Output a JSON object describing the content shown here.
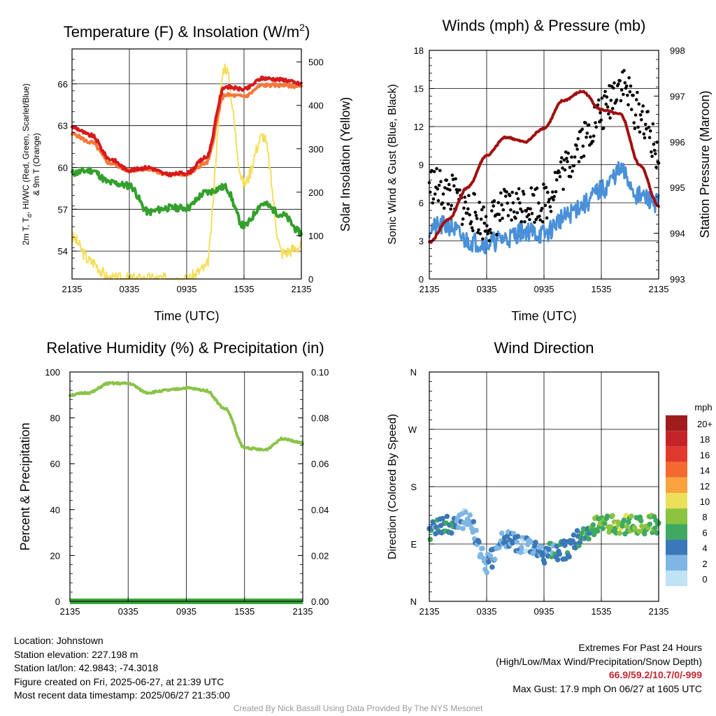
{
  "colors": {
    "temp": "#d7191c",
    "dewpoint": "#33a02c",
    "heat_index": "#e31a1c",
    "temp9m": "#f4793a",
    "insolation": "#f5de5b",
    "pressure": "#a01010",
    "wind": "#4a90d9",
    "gust": "#000000",
    "rh": "#8bc34a",
    "precip": "#3aa83a",
    "grid": "#000000",
    "extremes": "#c0262d"
  },
  "x_ticks": [
    "2135",
    "0335",
    "0935",
    "1535",
    "2135"
  ],
  "charts": {
    "temperature": {
      "title_main": "Temperature (F) & Insolation (W/m",
      "title_sup": "2",
      "title_end": ")",
      "xlabel": "Time (UTC)",
      "ylabel_line1": "2m T, T",
      "ylabel_sub": "d",
      "ylabel_line1_end": ", HI/WC (Red, Green, Scarlet/Blue)",
      "ylabel_line2": "& 9m T (Orange)",
      "y2label": "Solar Insolation (Yellow)",
      "y_ticks": [
        "54",
        "57",
        "60",
        "63",
        "66"
      ],
      "y2_ticks": [
        "0",
        "100",
        "200",
        "300",
        "400",
        "500"
      ]
    },
    "winds": {
      "title": "Winds (mph) & Pressure (mb)",
      "xlabel": "Time (UTC)",
      "ylabel": "Sonic Wind & Gust (Blue, Black)",
      "y2label": "Station Pressure (Maroon)",
      "y_ticks": [
        "0",
        "3",
        "6",
        "9",
        "12",
        "15",
        "18"
      ],
      "y2_ticks": [
        "993",
        "994",
        "995",
        "996",
        "997",
        "998"
      ]
    },
    "humidity": {
      "title": "Relative Humidity (%) & Precipitation (in)",
      "ylabel": "Percent & Precipitation",
      "y_ticks": [
        "0",
        "20",
        "40",
        "60",
        "80",
        "100"
      ],
      "y2_ticks": [
        "0.00",
        "0.02",
        "0.04",
        "0.06",
        "0.08",
        "0.10"
      ]
    },
    "direction": {
      "title": "Wind Direction",
      "ylabel": "Direction (Colored By Speed)",
      "y_ticks": [
        "N",
        "E",
        "S",
        "W",
        "N"
      ],
      "legend_title": "mph",
      "legend_labels": [
        "20+",
        "18",
        "16",
        "14",
        "12",
        "10",
        "8",
        "6",
        "4",
        "2",
        "0"
      ],
      "legend_colors": [
        "#9e1c1c",
        "#c4232a",
        "#e03a2e",
        "#f26a2d",
        "#f9a33f",
        "#ece05a",
        "#8cc43f",
        "#3faa5f",
        "#3a78b8",
        "#7fb6e3",
        "#bfe2f5"
      ]
    }
  },
  "chart_data": [
    {
      "type": "line",
      "title": "Temperature (F) & Insolation (W/m2)",
      "xlabel": "Time (UTC)",
      "x": [
        "2135",
        "2335",
        "0135",
        "0335",
        "0535",
        "0735",
        "0935",
        "1135",
        "1335",
        "1535",
        "1735",
        "1935",
        "2135"
      ],
      "ylim": [
        52,
        68.5
      ],
      "y2lim": [
        0,
        530
      ],
      "series": [
        {
          "name": "2m T",
          "axis": "left",
          "values": [
            62.9,
            62.3,
            60.6,
            59.8,
            60.0,
            59.5,
            59.6,
            60.7,
            65.8,
            65.6,
            66.4,
            66.3,
            66.0
          ]
        },
        {
          "name": "9m T",
          "axis": "left",
          "values": [
            62.4,
            61.8,
            60.3,
            59.8,
            59.9,
            59.5,
            59.5,
            60.3,
            65.2,
            65.1,
            65.9,
            65.9,
            65.8
          ]
        },
        {
          "name": "Td",
          "axis": "left",
          "values": [
            59.6,
            59.8,
            58.9,
            58.7,
            56.8,
            57.1,
            57.1,
            58.2,
            58.6,
            55.8,
            57.4,
            56.6,
            55.3
          ]
        },
        {
          "name": "Solar Insolation",
          "axis": "right",
          "values": [
            95,
            40,
            0,
            0,
            0,
            0,
            0,
            25,
            490,
            220,
            330,
            60,
            75
          ]
        }
      ]
    },
    {
      "type": "line",
      "title": "Winds (mph) & Pressure (mb)",
      "xlabel": "Time (UTC)",
      "x": [
        "2135",
        "2335",
        "0135",
        "0335",
        "0535",
        "0735",
        "0935",
        "1135",
        "1335",
        "1535",
        "1735",
        "1935",
        "2135"
      ],
      "ylim": [
        0,
        18
      ],
      "y2lim": [
        993,
        998
      ],
      "series": [
        {
          "name": "Sonic Wind",
          "axis": "left",
          "values": [
            4.0,
            4.2,
            3.0,
            2.8,
            3.2,
            3.8,
            3.5,
            4.8,
            5.8,
            7.0,
            8.5,
            6.5,
            6.0
          ]
        },
        {
          "name": "Gust",
          "axis": "left",
          "values": [
            7.5,
            6.8,
            5.5,
            4.5,
            5.5,
            6.0,
            6.0,
            8.5,
            11.0,
            13.0,
            15.5,
            13.0,
            10.0
          ]
        },
        {
          "name": "Station Pressure",
          "axis": "right",
          "values": [
            993.8,
            994.3,
            995.0,
            995.7,
            996.1,
            996.0,
            996.3,
            996.9,
            997.1,
            996.7,
            996.6,
            995.5,
            994.6
          ]
        }
      ]
    },
    {
      "type": "line",
      "title": "Relative Humidity (%) & Precipitation (in)",
      "x": [
        "2135",
        "2335",
        "0135",
        "0335",
        "0535",
        "0735",
        "0935",
        "1135",
        "1335",
        "1535",
        "1735",
        "1935",
        "2135"
      ],
      "ylim": [
        0,
        100
      ],
      "y2lim": [
        0,
        0.1
      ],
      "series": [
        {
          "name": "Relative Humidity",
          "axis": "left",
          "values": [
            90,
            91,
            95,
            95,
            91,
            92,
            93,
            92,
            84,
            67,
            66,
            71,
            69
          ]
        },
        {
          "name": "Precipitation",
          "axis": "right",
          "values": [
            0,
            0,
            0,
            0,
            0,
            0,
            0,
            0,
            0,
            0,
            0,
            0,
            0
          ]
        }
      ]
    },
    {
      "type": "scatter",
      "title": "Wind Direction",
      "x": [
        "2135",
        "2335",
        "0135",
        "0335",
        "0535",
        "0735",
        "0935",
        "1135",
        "1335",
        "1535",
        "1735",
        "1935",
        "2135"
      ],
      "y_categories": [
        "N",
        "E",
        "S",
        "W",
        "N"
      ],
      "series": [
        {
          "name": "Direction (deg)",
          "values": [
            110,
            120,
            130,
            60,
            100,
            85,
            75,
            80,
            100,
            125,
            120,
            120,
            120
          ]
        },
        {
          "name": "Speed (mph)",
          "values": [
            4,
            4,
            2,
            3,
            3,
            2,
            4,
            4,
            5,
            7,
            8,
            7,
            6
          ]
        }
      ]
    }
  ],
  "footer": {
    "location": "Location: Johnstown",
    "elevation": "Station elevation: 227.198 m",
    "latlon": "Station lat/lon: 42.9843; -74.3018",
    "created": "Figure created on Fri, 2025-06-27, at 21:39 UTC",
    "recent": "Most recent data timestamp: 2025/06/27 21:35:00",
    "extremes_title": "Extremes For Past 24 Hours",
    "extremes_desc": "(High/Low/Max Wind/Precipitation/Snow Depth)",
    "extremes_values": "66.9/59.2/10.7/0/-999",
    "max_gust": "Max Gust: 17.9 mph On 06/27 at 1605 UTC",
    "credit": "Created By Nick Bassill Using Data Provided By The NYS Mesonet"
  }
}
